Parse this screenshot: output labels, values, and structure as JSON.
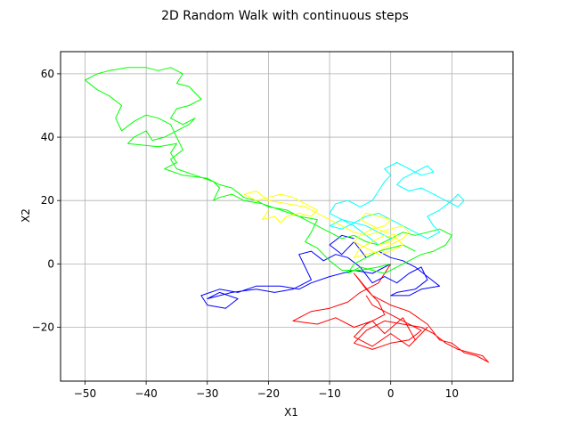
{
  "chart_data": {
    "type": "line",
    "title": "2D Random Walk with continuous steps",
    "xlabel": "X1",
    "ylabel": "X2",
    "xlim": [
      -54,
      20
    ],
    "ylim": [
      -37,
      67
    ],
    "xticks": [
      -50,
      -40,
      -30,
      -20,
      -10,
      0,
      10
    ],
    "yticks": [
      -20,
      0,
      20,
      40,
      60
    ],
    "xtick_labels": [
      "−50",
      "−40",
      "−30",
      "−20",
      "−10",
      "0",
      "10"
    ],
    "ytick_labels": [
      "−20",
      "0",
      "20",
      "40",
      "60"
    ],
    "grid": true,
    "legend": "none",
    "series": [
      {
        "color": "#ff0000",
        "points": [
          [
            0,
            0
          ],
          [
            -2,
            -6
          ],
          [
            -5,
            -9
          ],
          [
            -7,
            -12
          ],
          [
            -10,
            -14
          ],
          [
            -13,
            -15
          ],
          [
            -16,
            -18
          ],
          [
            -12,
            -19
          ],
          [
            -9,
            -17
          ],
          [
            -6,
            -20
          ],
          [
            -3,
            -18
          ],
          [
            -1,
            -22
          ],
          [
            2,
            -17
          ],
          [
            4,
            -24
          ],
          [
            6,
            -20
          ],
          [
            3,
            -26
          ],
          [
            0,
            -22
          ],
          [
            -3,
            -26
          ],
          [
            -6,
            -23
          ],
          [
            -4,
            -19
          ],
          [
            -1,
            -16
          ],
          [
            -2,
            -12
          ],
          [
            -4,
            -8
          ],
          [
            -6,
            -3
          ],
          [
            -3,
            -10
          ],
          [
            0,
            -13
          ],
          [
            3,
            -15
          ],
          [
            6,
            -19
          ],
          [
            8,
            -24
          ],
          [
            10,
            -25
          ],
          [
            12,
            -28
          ],
          [
            14,
            -29
          ],
          [
            16,
            -31
          ],
          [
            15,
            -29
          ],
          [
            13,
            -28
          ],
          [
            11,
            -27
          ],
          [
            9,
            -25
          ],
          [
            7,
            -22
          ],
          [
            5,
            -20
          ],
          [
            2,
            -19
          ],
          [
            -1,
            -18
          ],
          [
            -4,
            -21
          ],
          [
            -6,
            -25
          ],
          [
            -3,
            -27
          ],
          [
            0,
            -25
          ],
          [
            3,
            -24
          ],
          [
            5,
            -21
          ],
          [
            2,
            -18
          ],
          [
            -1,
            -15
          ],
          [
            -3,
            -13
          ],
          [
            -4,
            -10
          ]
        ]
      },
      {
        "color": "#0000ff",
        "points": [
          [
            0,
            0
          ],
          [
            -3,
            -3
          ],
          [
            -6,
            -2
          ],
          [
            -10,
            -4
          ],
          [
            -13,
            -6
          ],
          [
            -15,
            -8
          ],
          [
            -18,
            -7
          ],
          [
            -22,
            -7
          ],
          [
            -25,
            -9
          ],
          [
            -28,
            -8
          ],
          [
            -31,
            -10
          ],
          [
            -30,
            -13
          ],
          [
            -27,
            -14
          ],
          [
            -25,
            -11
          ],
          [
            -28,
            -9
          ],
          [
            -30,
            -11
          ],
          [
            -26,
            -9
          ],
          [
            -22,
            -8
          ],
          [
            -19,
            -9
          ],
          [
            -16,
            -8
          ],
          [
            -13,
            -5
          ],
          [
            -14,
            -1
          ],
          [
            -15,
            3
          ],
          [
            -13,
            4
          ],
          [
            -11,
            1
          ],
          [
            -9,
            3
          ],
          [
            -7,
            2
          ],
          [
            -5,
            -1
          ],
          [
            -3,
            -6
          ],
          [
            -1,
            -4
          ],
          [
            1,
            -6
          ],
          [
            3,
            -3
          ],
          [
            5,
            -1
          ],
          [
            6,
            -5
          ],
          [
            4,
            -8
          ],
          [
            1,
            -9
          ],
          [
            0,
            -10
          ],
          [
            3,
            -10
          ],
          [
            5,
            -8
          ],
          [
            8,
            -7
          ],
          [
            6,
            -4
          ],
          [
            4,
            -1
          ],
          [
            2,
            1
          ],
          [
            0,
            2
          ],
          [
            -2,
            4
          ],
          [
            -4,
            2
          ],
          [
            -6,
            7
          ],
          [
            -8,
            3
          ],
          [
            -10,
            6
          ],
          [
            -8,
            9
          ],
          [
            -6,
            8
          ]
        ]
      },
      {
        "color": "#00ff00",
        "points": [
          [
            0,
            0
          ],
          [
            -2,
            -1
          ],
          [
            -5,
            -2
          ],
          [
            -8,
            -2
          ],
          [
            -10,
            1
          ],
          [
            -12,
            5
          ],
          [
            -14,
            7
          ],
          [
            -13,
            10
          ],
          [
            -12,
            14
          ],
          [
            -15,
            15
          ],
          [
            -18,
            17
          ],
          [
            -21,
            19
          ],
          [
            -24,
            20
          ],
          [
            -26,
            22
          ],
          [
            -28,
            21
          ],
          [
            -29,
            20
          ],
          [
            -28,
            24
          ],
          [
            -29,
            26
          ],
          [
            -32,
            28
          ],
          [
            -35,
            30
          ],
          [
            -36,
            33
          ],
          [
            -34,
            36
          ],
          [
            -35,
            40
          ],
          [
            -36,
            44
          ],
          [
            -38,
            46
          ],
          [
            -40,
            47
          ],
          [
            -42,
            45
          ],
          [
            -44,
            42
          ],
          [
            -45,
            46
          ],
          [
            -44,
            50
          ],
          [
            -46,
            53
          ],
          [
            -48,
            55
          ],
          [
            -50,
            58
          ],
          [
            -48,
            60
          ],
          [
            -46,
            61
          ],
          [
            -43,
            62
          ],
          [
            -40,
            62
          ],
          [
            -38,
            61
          ],
          [
            -36,
            62
          ],
          [
            -34,
            60
          ],
          [
            -35,
            57
          ],
          [
            -33,
            56
          ],
          [
            -31,
            52
          ],
          [
            -33,
            50
          ],
          [
            -35,
            49
          ],
          [
            -36,
            46
          ],
          [
            -34,
            44
          ],
          [
            -32,
            46
          ],
          [
            -33,
            44
          ],
          [
            -35,
            42
          ],
          [
            -37,
            40
          ],
          [
            -39,
            39
          ],
          [
            -40,
            42
          ],
          [
            -42,
            40
          ],
          [
            -43,
            38
          ],
          [
            -38,
            37
          ],
          [
            -35,
            38
          ],
          [
            -36,
            35
          ],
          [
            -35,
            32
          ],
          [
            -37,
            30
          ],
          [
            -34,
            28
          ],
          [
            -30,
            27
          ],
          [
            -28,
            25
          ],
          [
            -26,
            24
          ],
          [
            -24,
            21
          ],
          [
            -22,
            20
          ],
          [
            -20,
            18
          ],
          [
            -17,
            17
          ],
          [
            -14,
            14
          ],
          [
            -12,
            12
          ],
          [
            -10,
            10
          ],
          [
            -8,
            8
          ],
          [
            -6,
            9
          ],
          [
            -4,
            7
          ],
          [
            -2,
            6
          ],
          [
            0,
            8
          ],
          [
            2,
            10
          ],
          [
            4,
            9
          ],
          [
            6,
            10
          ],
          [
            8,
            11
          ],
          [
            10,
            9
          ],
          [
            9,
            6
          ],
          [
            7,
            4
          ],
          [
            5,
            3
          ],
          [
            3,
            1
          ],
          [
            1,
            -1
          ],
          [
            -1,
            -3
          ],
          [
            -3,
            -2
          ],
          [
            -5,
            -1
          ],
          [
            -7,
            -3
          ],
          [
            -6,
            0
          ],
          [
            -4,
            2
          ],
          [
            -2,
            4
          ],
          [
            0,
            5
          ],
          [
            2,
            6
          ],
          [
            4,
            4
          ]
        ]
      },
      {
        "color": "#00ffff",
        "points": [
          [
            -2,
            6
          ],
          [
            -4,
            9
          ],
          [
            -6,
            12
          ],
          [
            -8,
            14
          ],
          [
            -10,
            16
          ],
          [
            -9,
            19
          ],
          [
            -7,
            20
          ],
          [
            -5,
            18
          ],
          [
            -3,
            20
          ],
          [
            -2,
            23
          ],
          [
            -1,
            26
          ],
          [
            0,
            28
          ],
          [
            -1,
            30
          ],
          [
            1,
            32
          ],
          [
            3,
            30
          ],
          [
            5,
            28
          ],
          [
            7,
            29
          ],
          [
            6,
            31
          ],
          [
            4,
            29
          ],
          [
            2,
            27
          ],
          [
            1,
            25
          ],
          [
            3,
            23
          ],
          [
            5,
            24
          ],
          [
            7,
            22
          ],
          [
            9,
            20
          ],
          [
            11,
            18
          ],
          [
            12,
            20
          ],
          [
            11,
            22
          ],
          [
            10,
            20
          ],
          [
            8,
            17
          ],
          [
            6,
            15
          ],
          [
            7,
            12
          ],
          [
            8,
            10
          ],
          [
            6,
            8
          ],
          [
            4,
            10
          ],
          [
            2,
            12
          ],
          [
            0,
            14
          ],
          [
            -2,
            16
          ],
          [
            -4,
            15
          ],
          [
            -6,
            13
          ],
          [
            -8,
            14
          ],
          [
            -10,
            12
          ],
          [
            -8,
            11
          ],
          [
            -6,
            13
          ],
          [
            -4,
            12
          ],
          [
            -2,
            10
          ],
          [
            0,
            8
          ]
        ]
      },
      {
        "color": "#ffff00",
        "points": [
          [
            -20,
            17
          ],
          [
            -21,
            14
          ],
          [
            -19,
            15
          ],
          [
            -18,
            13
          ],
          [
            -17,
            15
          ],
          [
            -15,
            16
          ],
          [
            -13,
            15
          ],
          [
            -12,
            17
          ],
          [
            -14,
            19
          ],
          [
            -16,
            21
          ],
          [
            -18,
            22
          ],
          [
            -20,
            21
          ],
          [
            -22,
            20
          ],
          [
            -24,
            22
          ],
          [
            -22,
            23
          ],
          [
            -20,
            20
          ],
          [
            -17,
            19
          ],
          [
            -14,
            18
          ],
          [
            -12,
            16
          ],
          [
            -10,
            14
          ],
          [
            -8,
            12
          ],
          [
            -6,
            10
          ],
          [
            -4,
            9
          ],
          [
            -2,
            10
          ],
          [
            0,
            11
          ],
          [
            2,
            12
          ],
          [
            3,
            10
          ],
          [
            2,
            8
          ],
          [
            0,
            6
          ],
          [
            -2,
            4
          ],
          [
            -4,
            3
          ],
          [
            -6,
            2
          ],
          [
            -5,
            5
          ],
          [
            -3,
            7
          ],
          [
            -1,
            9
          ],
          [
            1,
            8
          ],
          [
            2,
            6
          ],
          [
            0,
            4
          ],
          [
            -2,
            3
          ],
          [
            -4,
            5
          ],
          [
            -6,
            7
          ],
          [
            -5,
            9
          ],
          [
            -3,
            11
          ],
          [
            -1,
            12
          ],
          [
            0,
            14
          ],
          [
            -2,
            15
          ],
          [
            -4,
            16
          ],
          [
            -5,
            14
          ],
          [
            -3,
            12
          ],
          [
            -1,
            10
          ],
          [
            1,
            9
          ],
          [
            0,
            7
          ],
          [
            -2,
            6
          ]
        ]
      }
    ]
  }
}
